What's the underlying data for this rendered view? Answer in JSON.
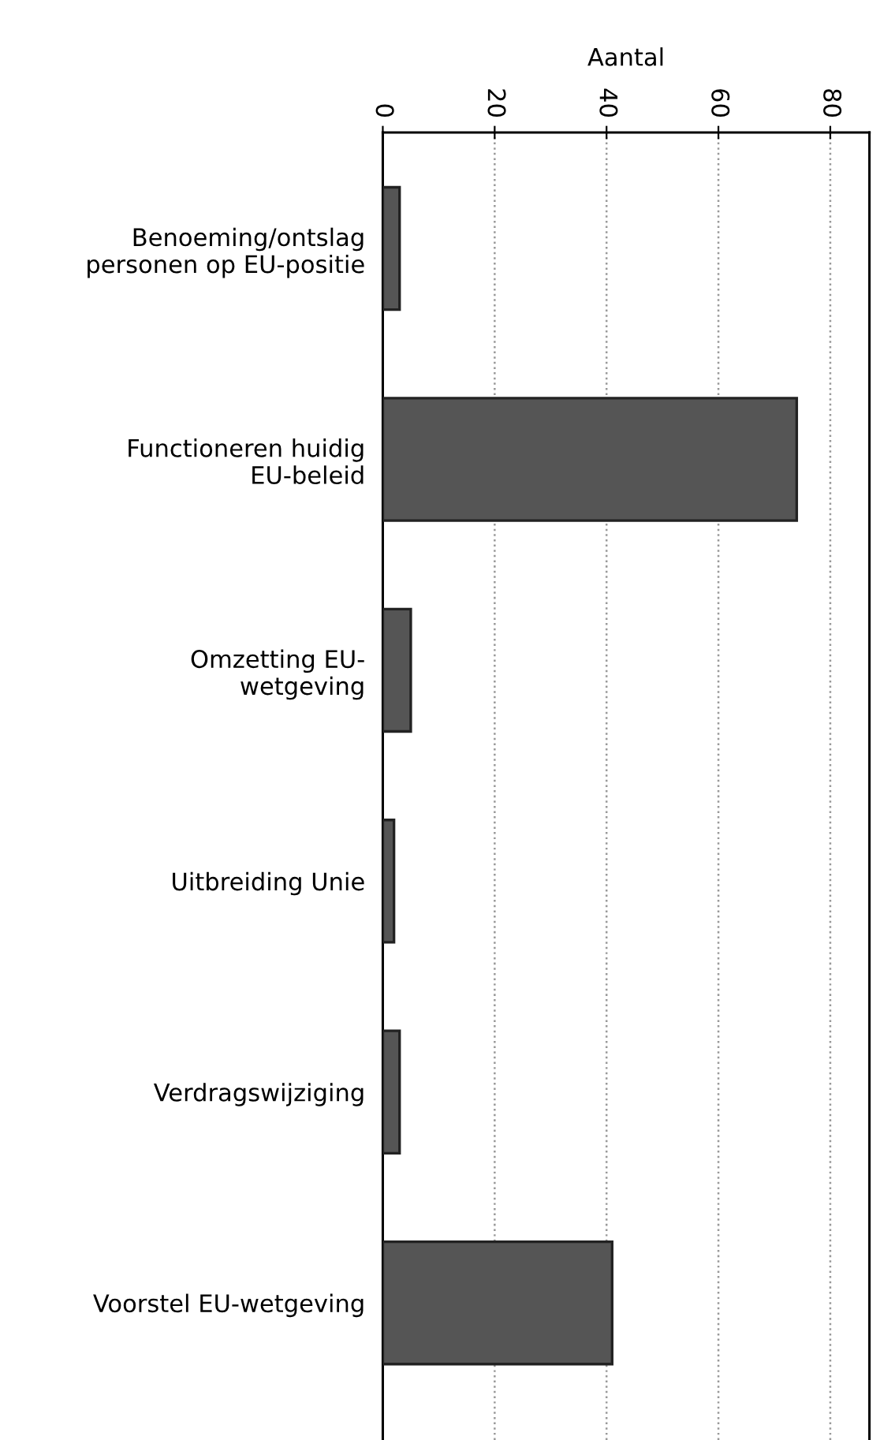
{
  "chart_data": {
    "type": "bar",
    "orientation": "horizontal",
    "xlabel": "Aantal",
    "categories": [
      "Benoeming/ontslag\npersonen op EU-positie",
      "Functioneren huidig\nEU-beleid",
      "Omzetting EU-\nwetgeving",
      "Uitbreiding Unie",
      "Verdragswijziging",
      "Voorstel EU-wetgeving"
    ],
    "values": [
      3,
      74,
      5,
      2,
      3,
      41
    ],
    "color": "#555555",
    "xlim": [
      0,
      87
    ],
    "xticks": [
      0,
      20,
      40,
      60,
      80
    ],
    "grid": "x"
  }
}
